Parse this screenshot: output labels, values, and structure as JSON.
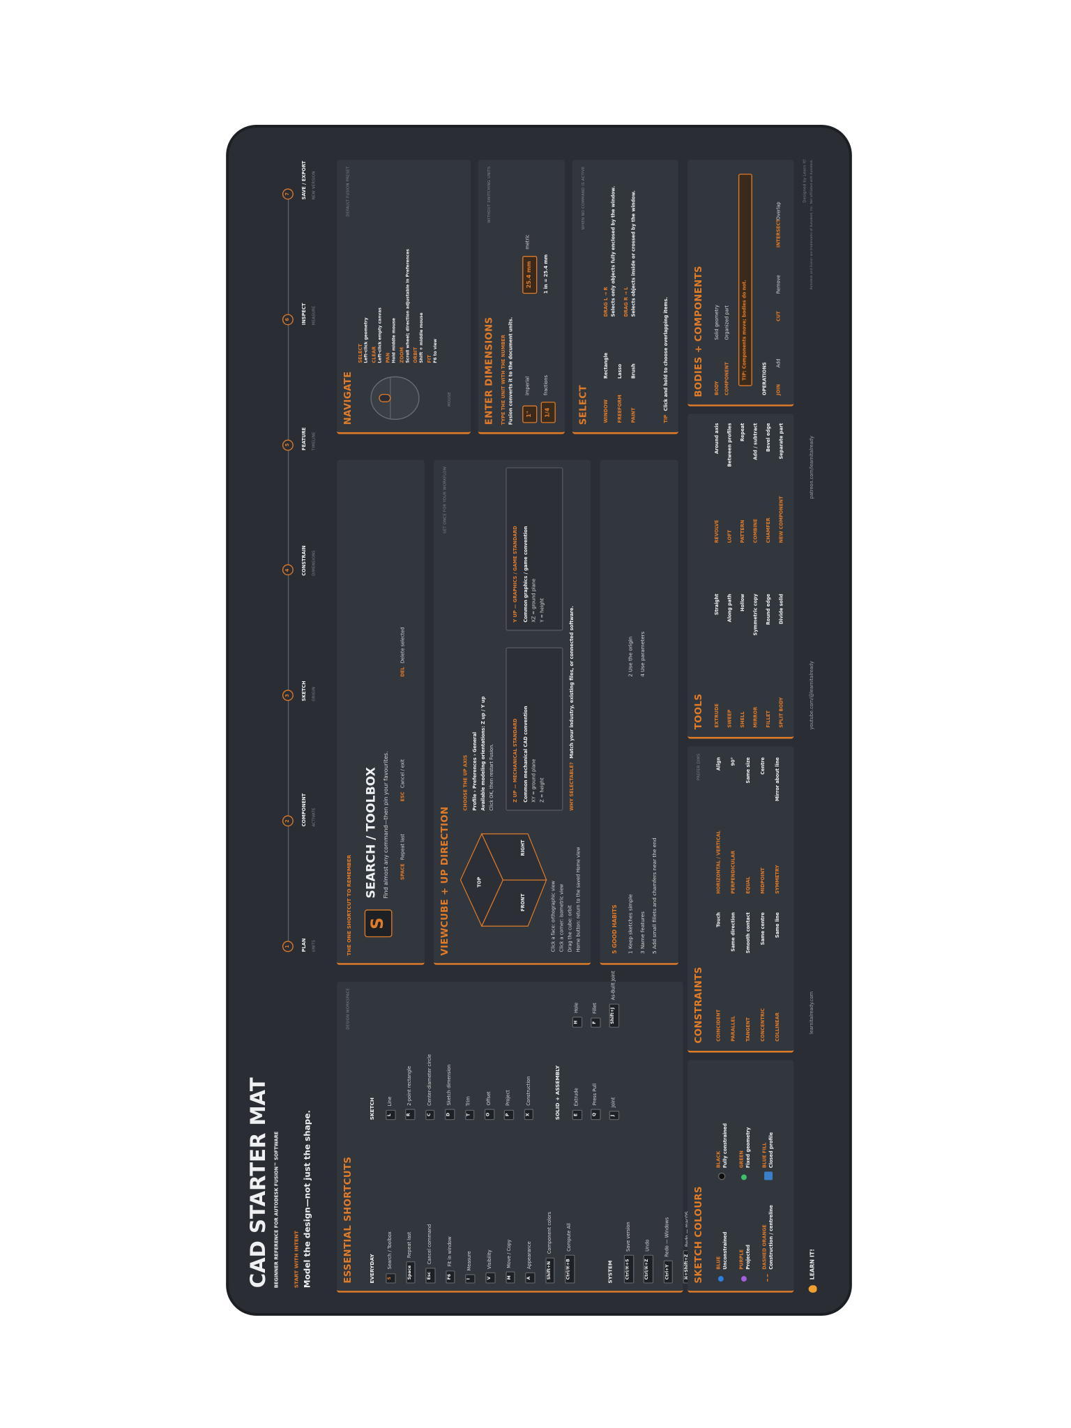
{
  "header": {
    "title": "CAD STARTER MAT",
    "subtitle": "BEGINNER REFERENCE FOR AUTODESK FUSION™ SOFTWARE",
    "intent_label": "START WITH INTENT",
    "intent": "Model the design—not just the shape."
  },
  "workflow": [
    {
      "step": "1",
      "label": "PLAN",
      "sub": "UNITS"
    },
    {
      "step": "2",
      "label": "COMPONENT",
      "sub": "ACTIVATE"
    },
    {
      "step": "3",
      "label": "SKETCH",
      "sub": "ORIGIN"
    },
    {
      "step": "4",
      "label": "CONSTRAIN",
      "sub": "DIMENSIONS"
    },
    {
      "step": "5",
      "label": "FEATURE",
      "sub": "TIMELINE"
    },
    {
      "step": "6",
      "label": "INSPECT",
      "sub": "MEASURE"
    },
    {
      "step": "7",
      "label": "SAVE / EXPORT",
      "sub": "NEW VERSION"
    }
  ],
  "shortcuts": {
    "title": "ESSENTIAL SHORTCUTS",
    "workspace": "DESIGN WORKSPACE",
    "groups": [
      {
        "heading": "EVERYDAY",
        "items": [
          [
            "S",
            "Search / Toolbox"
          ],
          [
            "Space",
            "Repeat last"
          ],
          [
            "Esc",
            "Cancel command"
          ],
          [
            "F6",
            "Fit in window"
          ],
          [
            "I",
            "Measure"
          ],
          [
            "V",
            "Visibility"
          ],
          [
            "M",
            "Move / Copy"
          ],
          [
            "A",
            "Appearance"
          ],
          [
            "Shift+N",
            "Component colors"
          ],
          [
            "Ctrl/⌘+B",
            "Compute All"
          ]
        ]
      },
      {
        "heading": "SYSTEM",
        "items": [
          [
            "Ctrl/⌘+S",
            "Save version"
          ],
          [
            "Ctrl/⌘+Z",
            "Undo"
          ],
          [
            "Ctrl+Y",
            "Redo — Windows"
          ],
          [
            "⌘+Shift+Z",
            "Redo — macOS"
          ]
        ]
      },
      {
        "heading": "SKETCH",
        "items": [
          [
            "L",
            "Line"
          ],
          [
            "R",
            "2-point rectangle"
          ],
          [
            "C",
            "Center-diameter circle"
          ],
          [
            "D",
            "Sketch dimension"
          ],
          [
            "T",
            "Trim"
          ],
          [
            "O",
            "Offset"
          ],
          [
            "P",
            "Project"
          ],
          [
            "X",
            "Construction"
          ]
        ]
      },
      {
        "heading": "SOLID + ASSEMBLY",
        "items": [
          [
            "E",
            "Extrude"
          ],
          [
            "Q",
            "Press Pull"
          ],
          [
            "J",
            "Joint"
          ],
          [
            "H",
            "Hole"
          ],
          [
            "F",
            "Fillet"
          ],
          [
            "Shift+J",
            "As-Built Joint"
          ]
        ]
      }
    ]
  },
  "colours": {
    "title": "SKETCH COLOURS",
    "items": [
      {
        "name": "BLUE",
        "desc": "Unconstrained",
        "color": "#2f7fe0",
        "style": "dot"
      },
      {
        "name": "PURPLE",
        "desc": "Projected",
        "color": "#a45ee0",
        "style": "dot"
      },
      {
        "name": "DASHED ORANGE",
        "desc": "Construction / centreline",
        "color": "#e07b2a",
        "style": "dashed"
      },
      {
        "name": "BLACK",
        "desc": "Fully constrained",
        "color": "#0d0d0d",
        "style": "dot"
      },
      {
        "name": "GREEN",
        "desc": "Fixed geometry",
        "color": "#3fbf6a",
        "style": "dot"
      },
      {
        "name": "BLUE FILL",
        "desc": "Closed profile",
        "color": "#3a7fc8",
        "style": "fill"
      }
    ]
  },
  "constraints": {
    "title": "CONSTRAINTS",
    "note": "PREFER DIMS",
    "items": [
      [
        "COINCIDENT",
        "Touch"
      ],
      [
        "PARALLEL",
        "Same direction"
      ],
      [
        "TANGENT",
        "Smooth contact"
      ],
      [
        "CONCENTRIC",
        "Same centre"
      ],
      [
        "COLLINEAR",
        "Same line"
      ],
      [
        "HORIZONTAL / VERTICAL",
        "Align"
      ],
      [
        "PERPENDICULAR",
        "90°"
      ],
      [
        "EQUAL",
        "Same size"
      ],
      [
        "MIDPOINT",
        "Centre"
      ],
      [
        "SYMMETRY",
        "Mirror about line"
      ]
    ]
  },
  "tools": {
    "title": "TOOLS",
    "items": [
      [
        "EXTRUDE",
        "Straight"
      ],
      [
        "SWEEP",
        "Along path"
      ],
      [
        "SHELL",
        "Hollow"
      ],
      [
        "MIRROR",
        "Symmetric copy"
      ],
      [
        "FILLET",
        "Round edge"
      ],
      [
        "SPLIT BODY",
        "Divide solid"
      ],
      [
        "REVOLVE",
        "Around axis"
      ],
      [
        "LOFT",
        "Between profiles"
      ],
      [
        "PATTERN",
        "Repeat"
      ],
      [
        "COMBINE",
        "Add / subtract"
      ],
      [
        "CHAMFER",
        "Bevel edge"
      ],
      [
        "NEW COMPONENT",
        "Separate part"
      ]
    ]
  },
  "bodies": {
    "title": "BODIES + COMPONENTS",
    "items": [
      [
        "BODY",
        "Solid geometry"
      ],
      [
        "COMPONENT",
        "Organized part"
      ]
    ],
    "tip": "TIP: Components move; bodies do not.",
    "operations_title": "OPERATIONS",
    "operations": [
      [
        "JOIN",
        "Add"
      ],
      [
        "CUT",
        "Remove"
      ],
      [
        "INTERSECT",
        "Overlap"
      ]
    ]
  },
  "search": {
    "kicker": "THE ONE SHORTCUT TO REMEMBER",
    "key": "S",
    "title": "SEARCH / TOOLBOX",
    "desc": "Find almost any command—then pin your favourites.",
    "items": [
      [
        "SPACE",
        "Repeat last"
      ],
      [
        "ESC",
        "Cancel / exit"
      ],
      [
        "DEL",
        "Delete selected"
      ]
    ]
  },
  "viewcube": {
    "title": "VIEWCUBE + UP DIRECTION",
    "note": "SET ONCE FOR YOUR WORKFLOW",
    "faces": {
      "top": "TOP",
      "front": "FRONT",
      "right": "RIGHT"
    },
    "tips": [
      "Click a face: orthographic view",
      "Click a corner: isometric view",
      "Drag the cube: orbit",
      "Home button: return to the saved Home view"
    ],
    "up_title": "CHOOSE THE UP AXIS",
    "up_lines": [
      "Profile › Preferences › General",
      "Available modeling orientations: Z up / Y up",
      "Click OK, then restart Fusion."
    ],
    "options": [
      {
        "title": "Z UP — MECHANICAL STANDARD",
        "lines": [
          "Common mechanical CAD convention",
          "XY = ground plane",
          "Z = height"
        ]
      },
      {
        "title": "Y UP — GRAPHICS / GAME STANDARD",
        "lines": [
          "Common graphics / game convention",
          "XZ = ground plane",
          "Y = height"
        ]
      }
    ],
    "why_label": "WHY SELECTABLE?",
    "why": "Match your industry, existing files, or connected software."
  },
  "habits": {
    "title": "5 GOOD HABITS",
    "items": [
      "1 Keep sketches simple",
      "2 Use the origin",
      "3 Name features",
      "4 Use parameters",
      "5 Add small fillets and chamfers near the end"
    ]
  },
  "navigate": {
    "title": "NAVIGATE",
    "note": "DEFAULT FUSION PRESET",
    "mouse_label": "MOUSE",
    "items": [
      [
        "SELECT",
        "Left-click geometry"
      ],
      [
        "CLEAR",
        "Left-click empty canvas"
      ],
      [
        "PAN",
        "Hold middle mouse"
      ],
      [
        "ZOOM",
        "Scroll wheel; direction adjustable in Preferences"
      ],
      [
        "ORBIT",
        "Shift + middle mouse"
      ],
      [
        "FIT",
        "F6 to view"
      ]
    ]
  },
  "dimensions": {
    "title": "ENTER DIMENSIONS",
    "note": "WITHOUT SWITCHING UNITS",
    "kicker": "TYPE THE UNIT WITH THE NUMBER",
    "desc": "Fusion converts it to the document units.",
    "examples": [
      {
        "value": "1\"",
        "label": "imperial"
      },
      {
        "value": "25.4 mm",
        "label": "metric"
      },
      {
        "value": "1/4",
        "label": "fractions"
      }
    ],
    "equivalence": "1 in = 25.4 mm"
  },
  "select": {
    "title": "SELECT",
    "note": "WHEN NO COMMAND IS ACTIVE",
    "modes": [
      [
        "WINDOW",
        "Rectangle"
      ],
      [
        "FREEFORM",
        "Lasso"
      ],
      [
        "PAINT",
        "Brush"
      ]
    ],
    "drags": [
      {
        "name": "DRAG L → R",
        "desc": "Selects only objects fully enclosed by the window."
      },
      {
        "name": "DRAG R → L",
        "desc": "Selects objects inside or crossed by the window."
      }
    ],
    "tip_label": "TIP",
    "tip": "Click and hold to choose overlapping items."
  },
  "footer": {
    "brand": "LEARN IT!",
    "links": [
      "learnitalready.com",
      "youtube.com/@learnitalready",
      "patreon.com/learnitalready"
    ],
    "credit": "Designed by Learn It!",
    "legal": "Autodesk and Fusion are trademarks of Autodesk, Inc. Not affiliated with Autodesk."
  }
}
